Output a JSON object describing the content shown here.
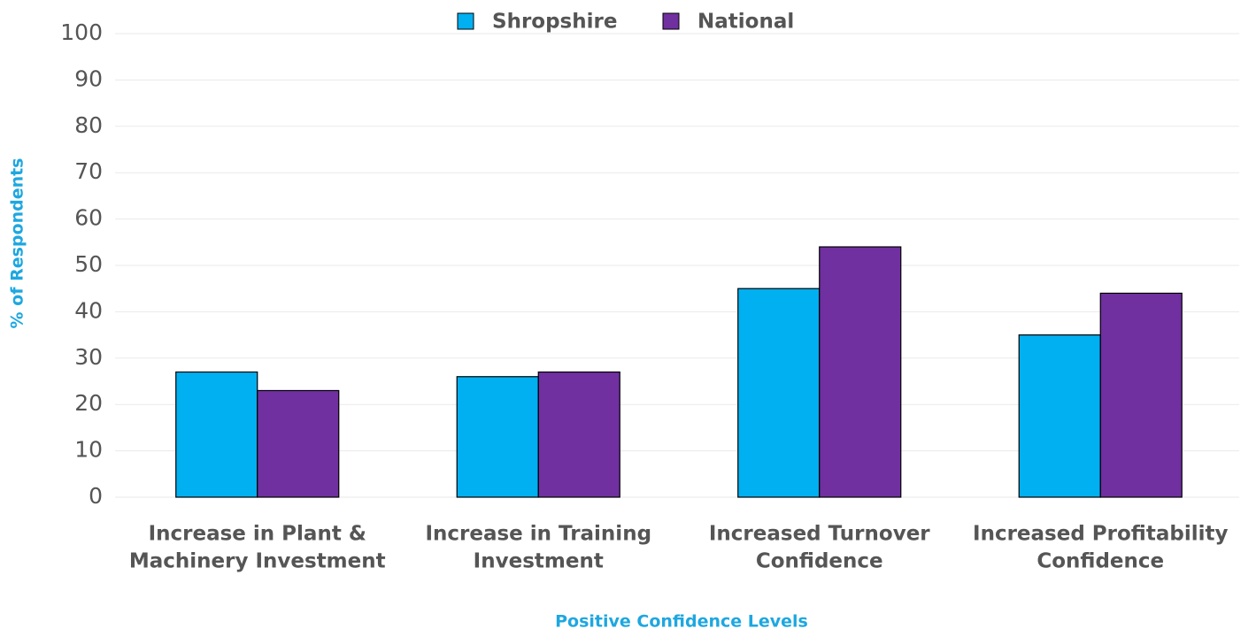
{
  "chart_data": {
    "type": "bar",
    "x_label": "Positive Confidence Levels",
    "y_label": "% of Respondents",
    "categories": [
      [
        "Increase in Plant &",
        "Machinery Investment"
      ],
      [
        "Increase in Training",
        "Investment"
      ],
      [
        "Increased Turnover",
        "Confidence"
      ],
      [
        "Increased Profitability",
        "Confidence"
      ]
    ],
    "series": [
      {
        "name": "Shropshire",
        "color": "#00b0f0",
        "values": [
          27,
          26,
          45,
          35
        ]
      },
      {
        "name": "National",
        "color": "#7030a0",
        "values": [
          23,
          27,
          54,
          44
        ]
      }
    ],
    "ylim": [
      0,
      100
    ],
    "yticks": [
      0,
      10,
      20,
      30,
      40,
      50,
      60,
      70,
      80,
      90,
      100
    ],
    "grid": true,
    "legend": "top"
  }
}
